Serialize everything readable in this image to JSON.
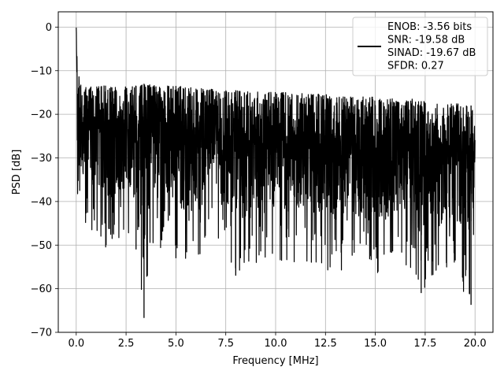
{
  "chart_data": {
    "type": "line",
    "xlabel": "Frequency [MHz]",
    "ylabel": "PSD [dB]",
    "xlim": [
      -0.9,
      20.9
    ],
    "ylim": [
      -70,
      3.5
    ],
    "xticks": [
      0.0,
      2.5,
      5.0,
      7.5,
      10.0,
      12.5,
      15.0,
      17.5,
      20.0
    ],
    "xtick_labels": [
      "0.0",
      "2.5",
      "5.0",
      "7.5",
      "10.0",
      "12.5",
      "15.0",
      "17.5",
      "20.0"
    ],
    "yticks": [
      0,
      -10,
      -20,
      -30,
      -40,
      -50,
      -60,
      -70
    ],
    "ytick_labels": [
      "0",
      "−10",
      "−20",
      "−30",
      "−40",
      "−50",
      "−60",
      "−70"
    ],
    "grid": true,
    "legend_position": "top-right",
    "series": [
      {
        "name": "ENOB: -3.56 bits\nSNR: -19.58 dB\nSINAD: -19.67 dB\nSFDR: 0.27",
        "legend_lines": [
          "ENOB: -3.56 bits",
          "SNR: -19.58 dB",
          "SINAD: -19.67 dB",
          "SFDR: 0.27"
        ],
        "color": "#000000",
        "x": [
          0.0,
          0.02,
          0.05,
          0.1,
          0.2,
          0.3,
          0.5,
          0.75,
          1.0,
          1.25,
          1.5,
          2.0,
          2.5,
          3.0,
          3.2,
          3.4,
          4.0,
          5.0,
          6.0,
          7.5,
          8.0,
          9.0,
          10.0,
          11.0,
          12.5,
          13.0,
          14.0,
          15.0,
          16.0,
          17.0,
          17.3,
          17.5,
          18.0,
          19.0,
          19.8,
          20.0
        ],
        "envelope_top": [
          0.0,
          -3,
          -8,
          -11,
          -12,
          -13,
          -13.5,
          -13.5,
          -13.5,
          -13.5,
          -13.5,
          -13.8,
          -13.5,
          -13.5,
          -13.5,
          -13.0,
          -13.5,
          -13.5,
          -14.0,
          -14.5,
          -14.5,
          -14.8,
          -15.0,
          -15.0,
          -15.5,
          -15.5,
          -16.0,
          -16.0,
          -16.5,
          -16.5,
          -17.0,
          -17.0,
          -17.5,
          -17.5,
          -18.0,
          -21.0
        ],
        "envelope_bottom": [
          -27,
          -30,
          -38,
          -40,
          -42,
          -44,
          -45,
          -47,
          -49,
          -50,
          -51,
          -49,
          -48,
          -51,
          -57,
          -66.7,
          -50,
          -53,
          -55,
          -52,
          -57,
          -56,
          -55,
          -54,
          -55,
          -58,
          -56,
          -57,
          -55,
          -57,
          -61,
          -60,
          -58,
          -58,
          -63.7,
          -40
        ]
      }
    ]
  }
}
